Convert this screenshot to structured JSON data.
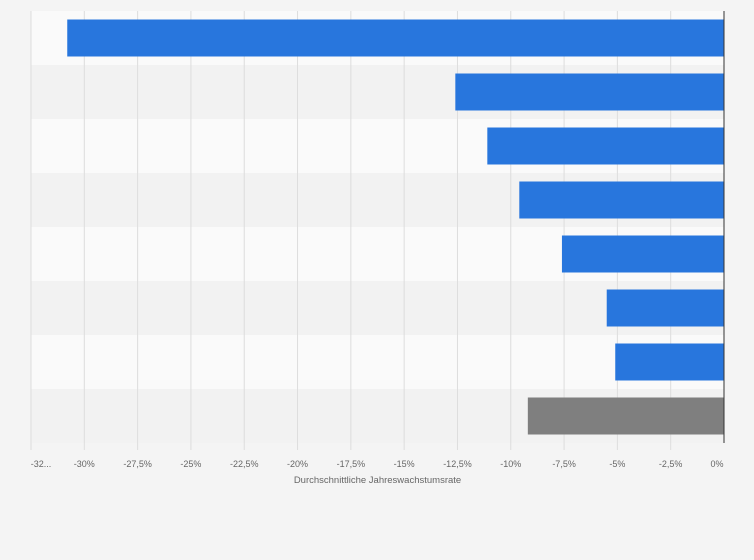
{
  "chart_data": {
    "type": "bar",
    "orientation": "horizontal",
    "title": "",
    "xlabel": "Durchschnittliche Jahreswachstumsrate",
    "ylabel": "",
    "categories": [
      "",
      "",
      "",
      "",
      "",
      "",
      "",
      ""
    ],
    "values": [
      -30.8,
      -12.6,
      -11.1,
      -9.6,
      -7.6,
      -5.5,
      -5.1,
      -9.2
    ],
    "bar_colors": [
      "#2876dd",
      "#2876dd",
      "#2876dd",
      "#2876dd",
      "#2876dd",
      "#2876dd",
      "#2876dd",
      "#7f7f7f"
    ],
    "xlim": [
      -32.5,
      0
    ],
    "x_ticks": [
      -32.5,
      -30,
      -27.5,
      -25,
      -22.5,
      -20,
      -17.5,
      -15,
      -12.5,
      -10,
      -7.5,
      -5,
      -2.5,
      0
    ],
    "x_tick_labels": [
      "-32...",
      "-30%",
      "-27,5%",
      "-25%",
      "-22,5%",
      "-20%",
      "-17,5%",
      "-15%",
      "-12,5%",
      "-10%",
      "-7,5%",
      "-5%",
      "-2,5%",
      "0%"
    ],
    "grid": true,
    "legend": "none"
  },
  "colors": {
    "background": "#f4f4f4",
    "band_light": "#fafafa",
    "band_dark": "#f2f2f2",
    "gridline": "#dddddd",
    "axis_line": "#333333"
  }
}
